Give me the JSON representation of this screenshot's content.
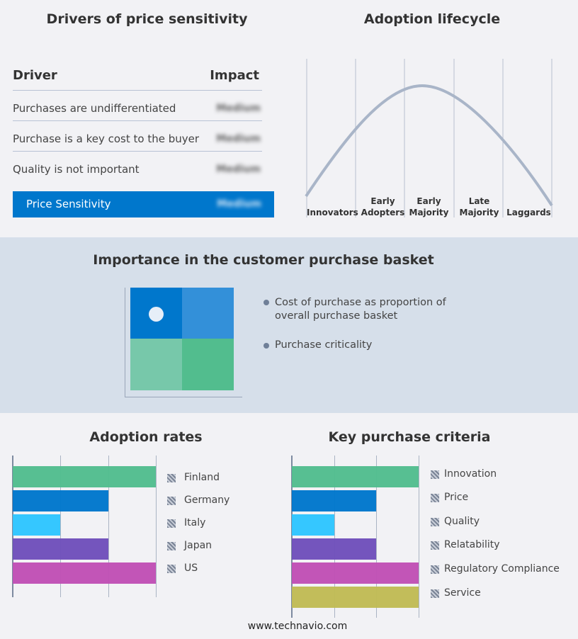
{
  "drivers": {
    "title": "Drivers of price sensitivity",
    "col_driver": "Driver",
    "col_impact": "Impact",
    "rows": [
      {
        "driver": "Purchases are undifferentiated",
        "impact": "Medium"
      },
      {
        "driver": "Purchase is a key cost to the buyer",
        "impact": "Medium"
      },
      {
        "driver": "Quality is not important",
        "impact": "Medium"
      }
    ],
    "summary": {
      "label": "Price Sensitivity",
      "impact": "Medium"
    },
    "accent": "#0077cc"
  },
  "lifecycle": {
    "title": "Adoption lifecycle",
    "stages": [
      "Innovators",
      "Early Adopters",
      "Early Majority",
      "Late Majority",
      "Laggards"
    ]
  },
  "basket": {
    "title": "Importance in the customer purchase basket",
    "legend": [
      "Cost of purchase as proportion of overall purchase basket",
      "Purchase criticality"
    ],
    "colors": [
      "#0077cc",
      "#3390d9",
      "#77c8aa",
      "#52bd8e"
    ]
  },
  "footer": "www.technavio.com",
  "chart_data": [
    {
      "type": "bar",
      "title": "Adoption rates",
      "orientation": "horizontal",
      "categories": [
        "Finland",
        "Germany",
        "Italy",
        "Japan",
        "US"
      ],
      "values": [
        3,
        2,
        1,
        2,
        3
      ],
      "xlim": [
        0,
        3
      ],
      "grid": true,
      "legend": "right",
      "colors": [
        "#52bd8e",
        "#0077cc",
        "#2ec5ff",
        "#6f4fbb",
        "#c050b5"
      ]
    },
    {
      "type": "bar",
      "title": "Key purchase criteria",
      "orientation": "horizontal",
      "categories": [
        "Innovation",
        "Price",
        "Quality",
        "Relatability",
        "Regulatory Compliance",
        "Service"
      ],
      "values": [
        3,
        2,
        1,
        2,
        3,
        3
      ],
      "xlim": [
        0,
        3
      ],
      "grid": true,
      "legend": "right",
      "colors": [
        "#52bd8e",
        "#0077cc",
        "#2ec5ff",
        "#6f4fbb",
        "#c050b5",
        "#c0bb55"
      ]
    }
  ]
}
